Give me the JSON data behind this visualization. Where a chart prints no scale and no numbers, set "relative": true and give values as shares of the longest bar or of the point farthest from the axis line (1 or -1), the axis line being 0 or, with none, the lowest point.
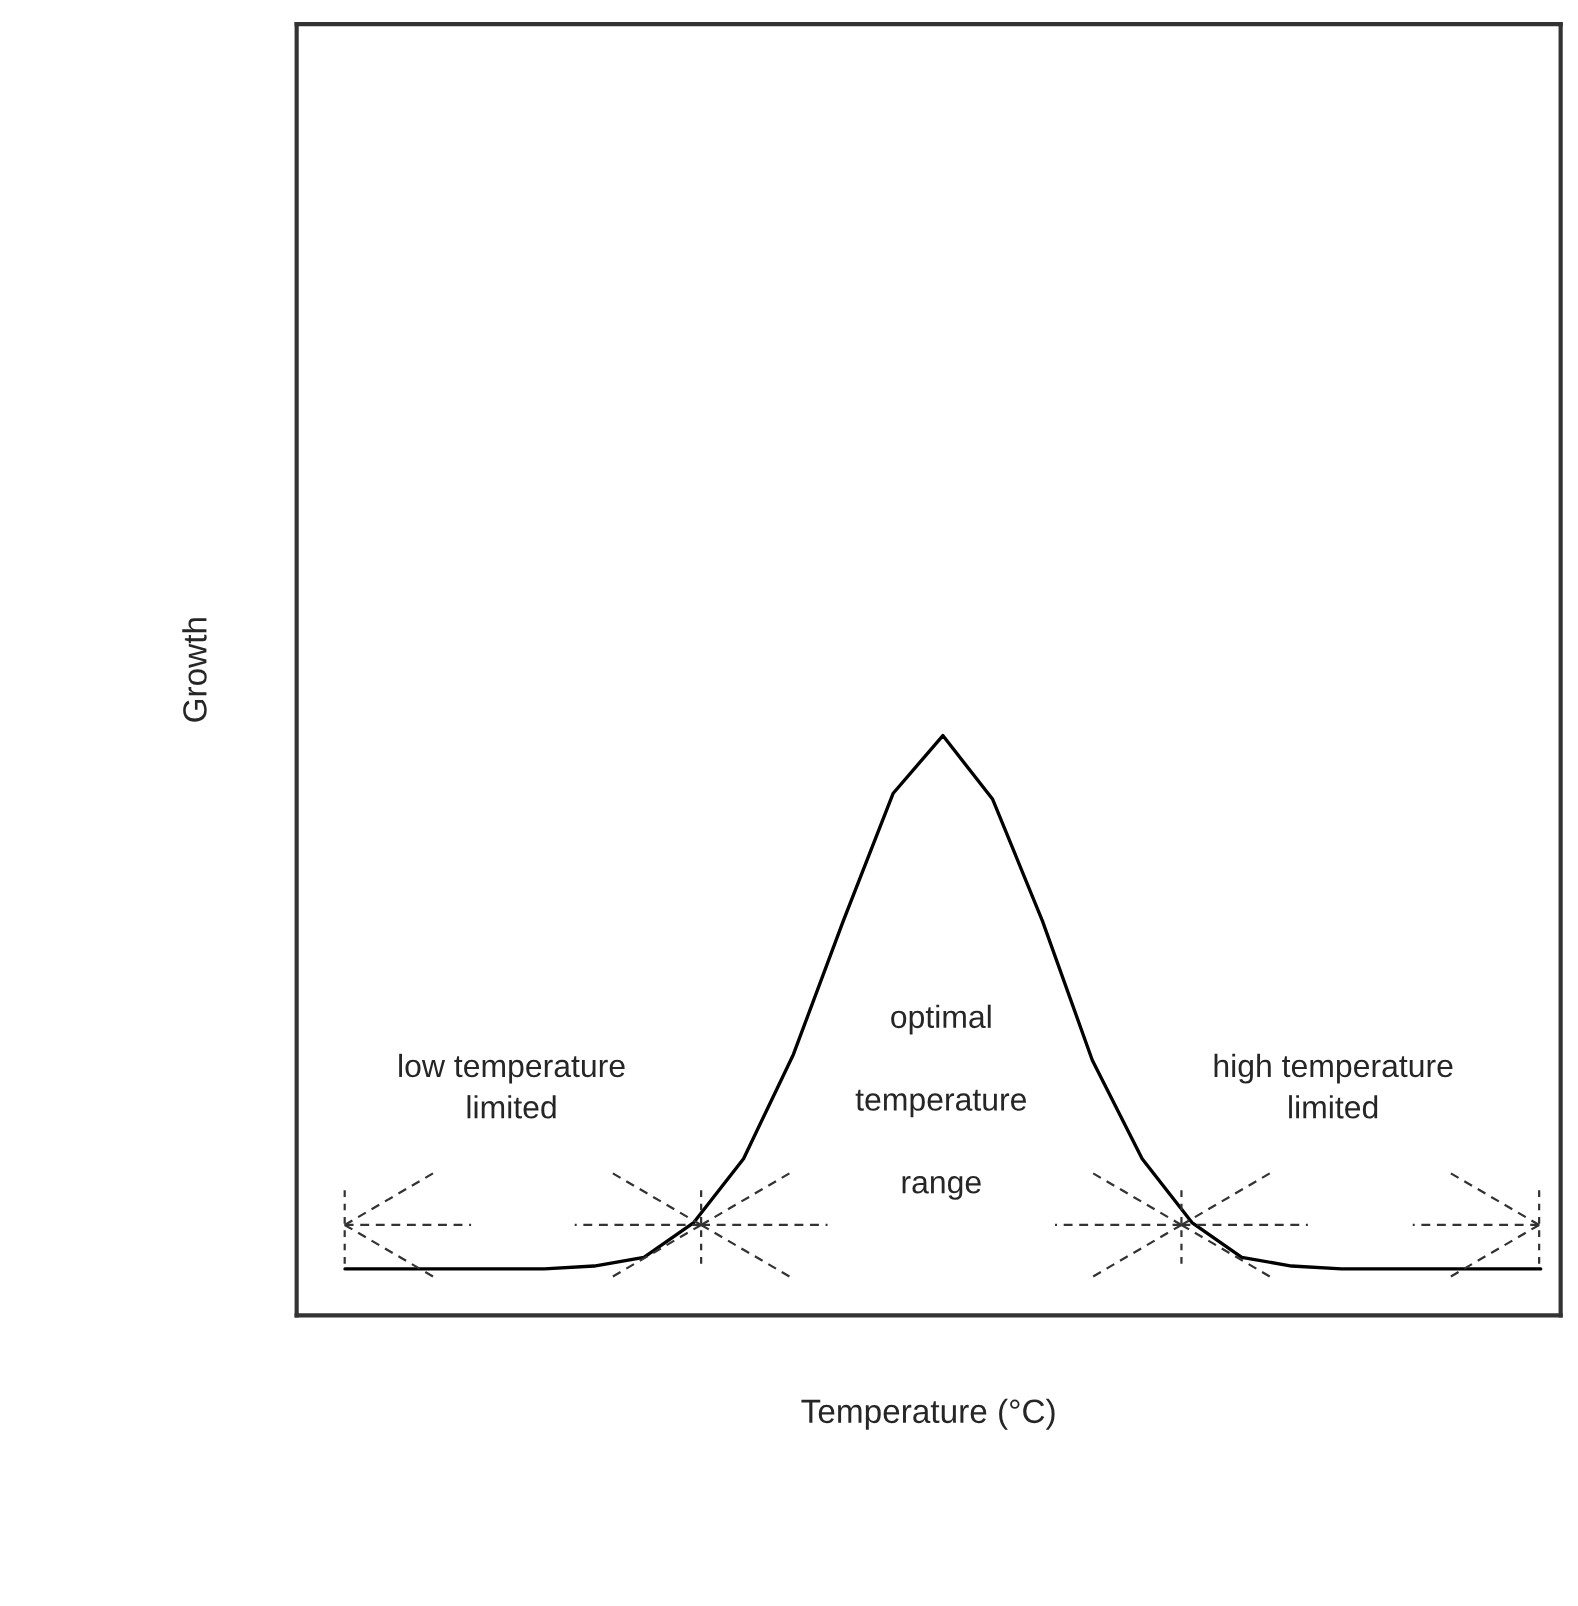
{
  "chart_data": {
    "type": "line",
    "relative": true,
    "xlabel": "Temperature (°C)",
    "ylabel": "Growth",
    "categories": [
      null,
      null,
      null,
      null,
      null,
      null,
      null,
      null,
      null,
      null,
      null,
      null,
      null,
      null,
      null,
      null,
      null,
      null,
      null,
      null,
      null,
      null,
      null,
      null,
      null
    ],
    "series": [
      {
        "color": "#000000",
        "values": [
          0.08,
          0.08,
          0.08,
          0.08,
          0.08,
          0.085,
          0.1,
          0.16,
          0.27,
          0.45,
          0.68,
          0.9,
          1.0,
          0.89,
          0.68,
          0.44,
          0.27,
          0.16,
          0.1,
          0.085,
          0.08,
          0.08,
          0.08,
          0.08,
          0.08
        ]
      }
    ],
    "annotations": [
      "low temperature\nlimited",
      "optimal\n\ntemperature\n\nrange",
      "high temperature\nlimited"
    ],
    "marker": "none",
    "line_style": "solid",
    "tick_labels": false
  }
}
